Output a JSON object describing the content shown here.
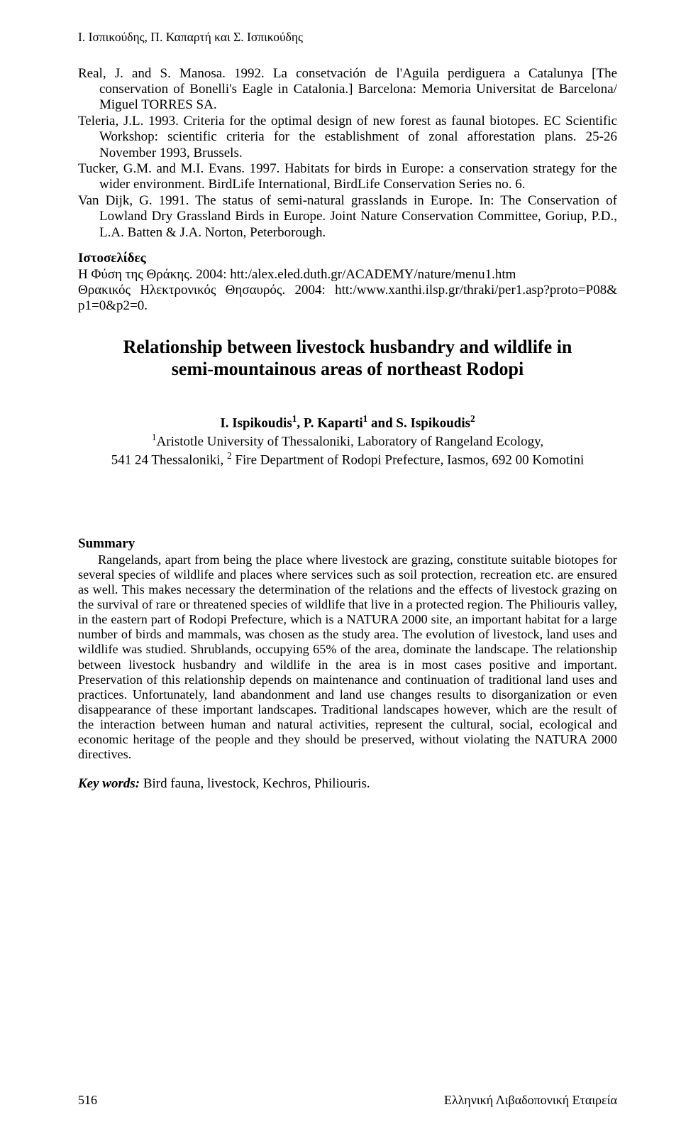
{
  "running_header": "Ι. Ισπικούδης, Π. Καπαρτή και Σ. Ισπικούδης",
  "refs": {
    "r1": "Real, J. and S. Manosa. 1992. La consetvación de l'Aguila perdiguera a Catalunya [The conservation of Bonelli's Eagle in Catalonia.] Barcelona: Memoria Universitat de Barcelona/ Miguel TORRES SA.",
    "r2": "Teleria, J.L. 1993. Criteria for the optimal design of new forest as faunal biotopes. EC Scientific Workshop: scientific criteria for the establishment of zonal afforestation plans. 25-26 November 1993, Brussels.",
    "r3": "Tucker, G.M. and M.I. Evans. 1997. Habitats for birds in Europe: a conservation strategy for the wider environment. BirdLife International, BirdLife Conservation Series no. 6.",
    "r4": "Van Dijk, G. 1991. The status of semi-natural grasslands in Europe. In: The Conservation of Lowland Dry Grassland Birds in Europe. Joint Nature Conservation Committee, Goriup, P.D., L.A. Batten & J.A. Norton, Peterborough."
  },
  "websites": {
    "heading": "Ιστοσελίδες",
    "w1": "Η Φύση της Θράκης. 2004: htt:/alex.eled.duth.gr/ACADEMY/nature/menu1.htm",
    "w2": "Θρακικός Ηλεκτρονικός Θησαυρός. 2004: htt:/www.xanthi.ilsp.gr/thraki/per1.asp?proto=P08& p1=0&p2=0."
  },
  "title": {
    "line1": "Relationship between livestock husbandry and wildlife in",
    "line2": "semi-mountainous areas of northeast Rodopi"
  },
  "authors": {
    "names_html": "I. Ispikoudis<sup>1</sup>, P. Kaparti<sup>1</sup> and S. Ispikoudis<sup>2</sup>",
    "aff1_html": "<sup>1</sup>Aristotle University of Thessaloniki, Laboratory of Rangeland Ecology,",
    "aff2_html": "541 24 Thessaloniki, <sup>2</sup> Fire Department of Rodopi Prefecture, Iasmos, 692 00 Komotini"
  },
  "summary": {
    "heading": "Summary",
    "body": "Rangelands, apart from being the place where livestock are grazing, constitute suitable biotopes for several species of wildlife and places where services such as soil protection, recreation etc. are ensured as well. This makes necessary the determination of the relations and the effects of livestock grazing on the survival of rare or threatened species of wildlife that live in a protected region. The Philiouris valley, in the eastern part of Rodopi Prefecture, which is a NATURA 2000 site, an important habitat for a large number of birds and mammals, was chosen as the study area. The evolution of livestock, land uses and wildlife was studied. Shrublands, occupying 65% of the area, dominate the landscape. The relationship between livestock husbandry and wildlife in the area is in most cases positive and important. Preservation of this relationship depends on maintenance and continuation of traditional land uses and practices. Unfortunately, land abandonment and land use changes results to disorganization or even disappearance of these important landscapes. Traditional landscapes however, which are the result of the interaction between human and natural activities, represent the cultural, social, ecological and economic heritage of the people and they should be preserved, without violating the NATURA 2000 directives."
  },
  "keywords": {
    "label": "Key words:",
    "text": " Bird fauna, livestock, Kechros, Philiouris."
  },
  "footer": {
    "page_number": "516",
    "source": "Ελληνική Λιβαδοπονική Εταιρεία"
  }
}
